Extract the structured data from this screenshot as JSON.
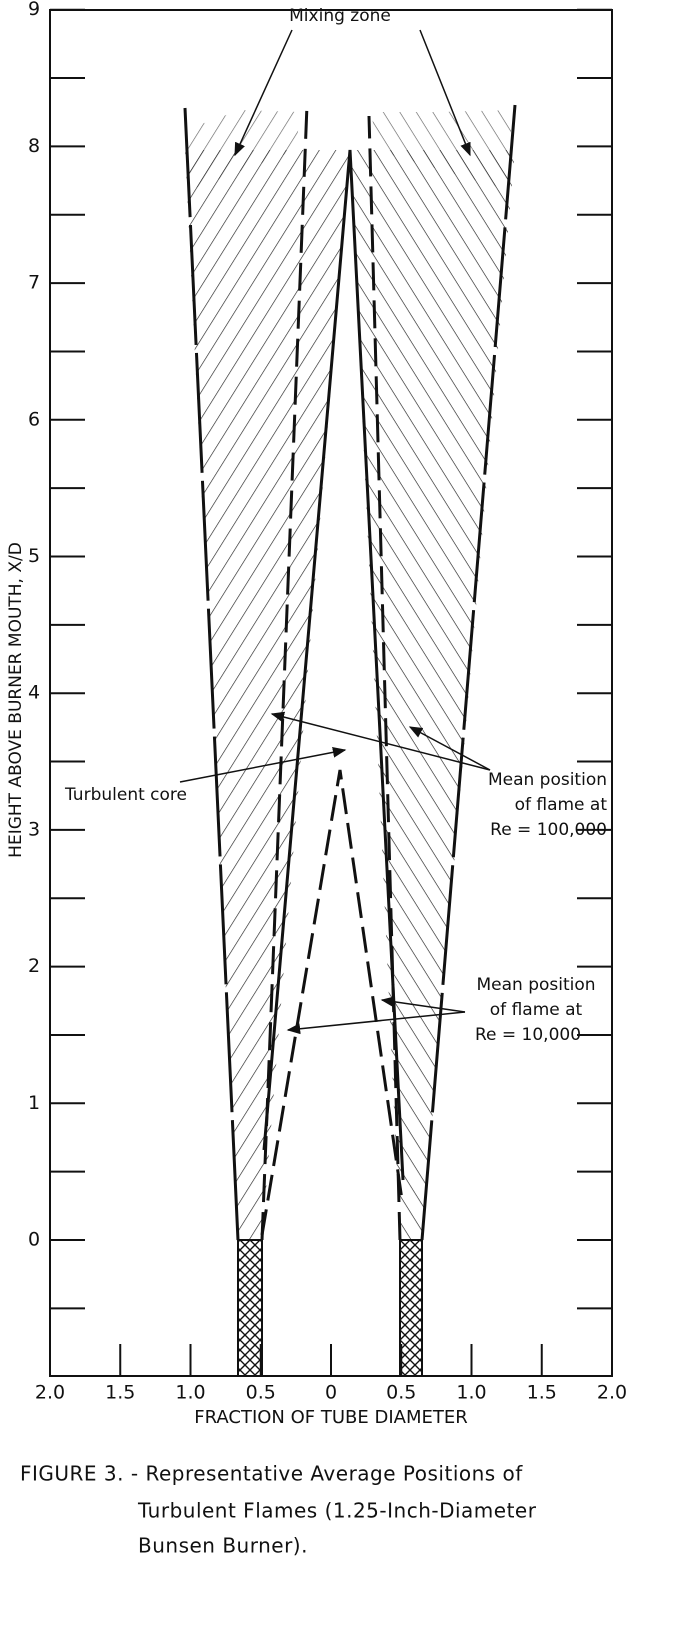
{
  "figure": {
    "y_axis": {
      "label": "HEIGHT ABOVE BURNER MOUTH, X/D",
      "ticks": [
        0,
        1,
        2,
        3,
        4,
        5,
        6,
        7,
        8,
        9
      ]
    },
    "x_axis": {
      "label": "FRACTION OF TUBE DIAMETER",
      "ticks": [
        {
          "value": -2,
          "label": "2.0"
        },
        {
          "value": -1.5,
          "label": "1.5"
        },
        {
          "value": -1,
          "label": "1.0"
        },
        {
          "value": -0.5,
          "label": "0.5"
        },
        0,
        {
          "value": 0.5,
          "label": "0.5"
        },
        {
          "value": 1,
          "label": "1.0"
        },
        {
          "value": 1.5,
          "label": "1.5"
        },
        {
          "value": 2,
          "label": "2.0"
        }
      ]
    },
    "annotations": {
      "mixing_zone": "Mixing zone",
      "turbulent_core": "Turbulent core",
      "flame_re_100000": [
        "Mean position",
        "of flame at",
        "Re = 100,000"
      ],
      "flame_re_10000": [
        "Mean position",
        "of flame at",
        "Re = 10,000"
      ]
    },
    "caption": [
      "FIGURE 3. - Representative Average Positions of",
      "Turbulent Flames (1.25-Inch-Diameter",
      "Bunsen Burner)."
    ]
  }
}
